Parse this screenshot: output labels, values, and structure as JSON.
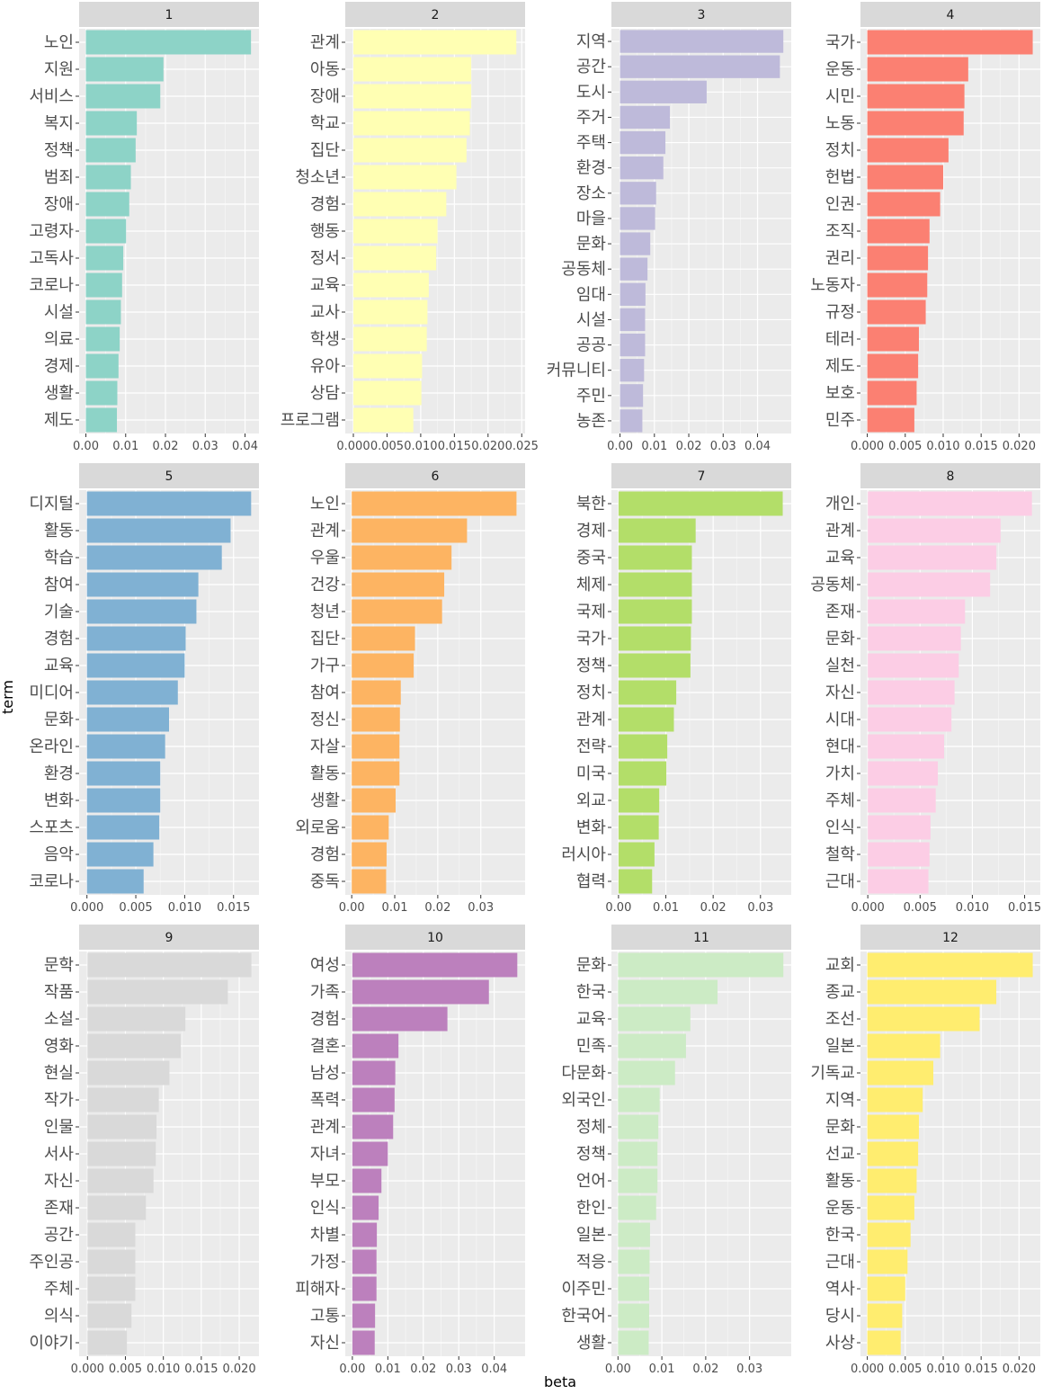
{
  "chart_data": {
    "type": "bar",
    "orientation": "horizontal",
    "layout": "facet_wrap",
    "xlabel": "beta",
    "ylabel": "term",
    "grid": true,
    "facets": [
      {
        "label": "1",
        "color": "#8DD3C7",
        "categories": [
          "노인",
          "지원",
          "서비스",
          "복지",
          "정책",
          "범죄",
          "장애",
          "고령자",
          "고독사",
          "코로나",
          "시설",
          "의료",
          "경제",
          "생활",
          "제도"
        ],
        "values": [
          0.0415,
          0.0195,
          0.0187,
          0.0128,
          0.0125,
          0.0113,
          0.0109,
          0.0101,
          0.0094,
          0.0091,
          0.0088,
          0.0085,
          0.0082,
          0.0079,
          0.0078
        ],
        "xlim": [
          -0.0017,
          0.0435
        ],
        "ticks": [
          0,
          0.01,
          0.02,
          0.03,
          0.04
        ],
        "tick_labels": [
          "0.00",
          "0.01",
          "0.02",
          "0.03",
          "0.04"
        ]
      },
      {
        "label": "2",
        "color": "#FFFFB3",
        "categories": [
          "관계",
          "아동",
          "장애",
          "학교",
          "집단",
          "청소년",
          "경험",
          "행동",
          "정서",
          "교육",
          "교사",
          "학생",
          "유아",
          "상담",
          "프로그램"
        ],
        "values": [
          0.0242,
          0.0175,
          0.0175,
          0.0173,
          0.0168,
          0.0153,
          0.0138,
          0.0125,
          0.0123,
          0.0112,
          0.011,
          0.0109,
          0.0102,
          0.0101,
          0.0089
        ],
        "xlim": [
          -0.0012,
          0.0255
        ],
        "ticks": [
          0,
          0.005,
          0.01,
          0.015,
          0.02,
          0.025
        ],
        "tick_labels": [
          "0.000",
          "0.005",
          "0.010",
          "0.015",
          "0.020",
          "0.025"
        ]
      },
      {
        "label": "3",
        "color": "#BEBADA",
        "categories": [
          "지역",
          "공간",
          "도시",
          "주거",
          "주택",
          "환경",
          "장소",
          "마을",
          "문화",
          "공동체",
          "임대",
          "시설",
          "공공",
          "커뮤니티",
          "주민",
          "농존"
        ],
        "values": [
          0.0475,
          0.0465,
          0.0252,
          0.0145,
          0.0132,
          0.0126,
          0.0105,
          0.0102,
          0.0088,
          0.008,
          0.0074,
          0.0073,
          0.0073,
          0.007,
          0.0067,
          0.0065
        ],
        "xlim": [
          -0.0025,
          0.0498
        ],
        "ticks": [
          0,
          0.01,
          0.02,
          0.03,
          0.04
        ],
        "tick_labels": [
          "0.00",
          "0.01",
          "0.02",
          "0.03",
          "0.04"
        ]
      },
      {
        "label": "4",
        "color": "#FB8072",
        "categories": [
          "국가",
          "운동",
          "시민",
          "노동",
          "정치",
          "헌법",
          "인권",
          "조직",
          "권리",
          "노동자",
          "규정",
          "테러",
          "제도",
          "보호",
          "민주"
        ],
        "values": [
          0.0218,
          0.0133,
          0.0128,
          0.0127,
          0.0107,
          0.01,
          0.0096,
          0.0082,
          0.008,
          0.0079,
          0.0077,
          0.0068,
          0.0067,
          0.0065,
          0.0062
        ],
        "xlim": [
          -0.0009,
          0.0228
        ],
        "ticks": [
          0,
          0.005,
          0.01,
          0.015,
          0.02
        ],
        "tick_labels": [
          "0.000",
          "0.005",
          "0.010",
          "0.015",
          "0.020"
        ]
      },
      {
        "label": "5",
        "color": "#80B1D3",
        "categories": [
          "디지털",
          "활동",
          "학습",
          "참여",
          "기술",
          "경험",
          "교육",
          "미디어",
          "문화",
          "온라인",
          "환경",
          "변화",
          "스포츠",
          "음악",
          "코로나"
        ],
        "values": [
          0.0168,
          0.0147,
          0.0138,
          0.0114,
          0.0112,
          0.0101,
          0.01,
          0.0093,
          0.0084,
          0.008,
          0.0075,
          0.0075,
          0.0074,
          0.0068,
          0.0058
        ],
        "xlim": [
          -0.0008,
          0.0176
        ],
        "ticks": [
          0,
          0.005,
          0.01,
          0.015
        ],
        "tick_labels": [
          "0.000",
          "0.005",
          "0.010",
          "0.015"
        ]
      },
      {
        "label": "6",
        "color": "#FDB462",
        "categories": [
          "노인",
          "관계",
          "우울",
          "건강",
          "청년",
          "집단",
          "가구",
          "참여",
          "정신",
          "자살",
          "활동",
          "생활",
          "외로움",
          "경험",
          "중독"
        ],
        "values": [
          0.0383,
          0.0268,
          0.0232,
          0.0215,
          0.021,
          0.0147,
          0.0144,
          0.0114,
          0.0112,
          0.0111,
          0.0111,
          0.0102,
          0.0086,
          0.0081,
          0.008
        ],
        "xlim": [
          -0.0015,
          0.0403
        ],
        "ticks": [
          0,
          0.01,
          0.02,
          0.03
        ],
        "tick_labels": [
          "0.00",
          "0.01",
          "0.02",
          "0.03"
        ]
      },
      {
        "label": "7",
        "color": "#B3DE69",
        "categories": [
          "북한",
          "경제",
          "중국",
          "체제",
          "국제",
          "국가",
          "정책",
          "정치",
          "관계",
          "전략",
          "미국",
          "외교",
          "변화",
          "러시아",
          "협력"
        ],
        "values": [
          0.0347,
          0.0163,
          0.0155,
          0.0155,
          0.0155,
          0.0153,
          0.0152,
          0.0122,
          0.0117,
          0.0103,
          0.0101,
          0.0086,
          0.0085,
          0.0076,
          0.0071
        ],
        "xlim": [
          -0.0015,
          0.0365
        ],
        "ticks": [
          0,
          0.01,
          0.02,
          0.03
        ],
        "tick_labels": [
          "0.00",
          "0.01",
          "0.02",
          "0.03"
        ]
      },
      {
        "label": "8",
        "color": "#FCCDE5",
        "categories": [
          "개인",
          "관계",
          "교육",
          "공동체",
          "존재",
          "문화",
          "실천",
          "자신",
          "시대",
          "현대",
          "가치",
          "주체",
          "인식",
          "철학",
          "근대"
        ],
        "values": [
          0.0157,
          0.0127,
          0.0123,
          0.0117,
          0.0093,
          0.0089,
          0.0087,
          0.0083,
          0.008,
          0.0073,
          0.0067,
          0.0065,
          0.006,
          0.0059,
          0.0058
        ],
        "xlim": [
          -0.0007,
          0.0165
        ],
        "ticks": [
          0,
          0.005,
          0.01,
          0.015
        ],
        "tick_labels": [
          "0.000",
          "0.005",
          "0.010",
          "0.015"
        ]
      },
      {
        "label": "9",
        "color": "#D9D9D9",
        "categories": [
          "문학",
          "작품",
          "소설",
          "영화",
          "현실",
          "작가",
          "인물",
          "서사",
          "자신",
          "존재",
          "공간",
          "주인공",
          "주체",
          "의식",
          "이야기"
        ],
        "values": [
          0.0216,
          0.0185,
          0.0129,
          0.0123,
          0.0108,
          0.0094,
          0.0091,
          0.009,
          0.0087,
          0.0077,
          0.0063,
          0.0063,
          0.0063,
          0.0058,
          0.0052
        ],
        "xlim": [
          -0.0011,
          0.0226
        ],
        "ticks": [
          0,
          0.005,
          0.01,
          0.015,
          0.02
        ],
        "tick_labels": [
          "0.000",
          "0.005",
          "0.010",
          "0.015",
          "0.020"
        ]
      },
      {
        "label": "10",
        "color": "#BC80BD",
        "categories": [
          "여성",
          "가족",
          "경험",
          "결혼",
          "남성",
          "폭력",
          "관계",
          "자녀",
          "부모",
          "인식",
          "차별",
          "가정",
          "피해자",
          "고통",
          "자신"
        ],
        "values": [
          0.0465,
          0.0385,
          0.0268,
          0.013,
          0.0121,
          0.0119,
          0.0115,
          0.01,
          0.0082,
          0.0074,
          0.0069,
          0.0068,
          0.0068,
          0.0064,
          0.0063
        ],
        "xlim": [
          -0.002,
          0.0487
        ],
        "ticks": [
          0,
          0.01,
          0.02,
          0.03,
          0.04
        ],
        "tick_labels": [
          "0.00",
          "0.01",
          "0.02",
          "0.03",
          "0.04"
        ]
      },
      {
        "label": "11",
        "color": "#CCEBC5",
        "categories": [
          "문화",
          "한국",
          "교육",
          "민족",
          "다문화",
          "외국인",
          "정체",
          "정책",
          "언어",
          "한인",
          "일본",
          "적응",
          "이주민",
          "한국어",
          "생활"
        ],
        "values": [
          0.0377,
          0.0227,
          0.0165,
          0.0155,
          0.013,
          0.0095,
          0.0092,
          0.009,
          0.009,
          0.0087,
          0.0073,
          0.0072,
          0.0071,
          0.0071,
          0.007
        ],
        "xlim": [
          -0.0015,
          0.0395
        ],
        "ticks": [
          0,
          0.01,
          0.02,
          0.03
        ],
        "tick_labels": [
          "0.00",
          "0.01",
          "0.02",
          "0.03"
        ]
      },
      {
        "label": "12",
        "color": "#FFED6F",
        "categories": [
          "교회",
          "종교",
          "조선",
          "일본",
          "기독교",
          "지역",
          "문화",
          "선교",
          "활동",
          "운동",
          "한국",
          "근대",
          "역사",
          "당시",
          "사상"
        ],
        "values": [
          0.0218,
          0.017,
          0.0148,
          0.0096,
          0.0087,
          0.0073,
          0.0068,
          0.0067,
          0.0065,
          0.0062,
          0.0057,
          0.0053,
          0.005,
          0.0046,
          0.0044
        ],
        "xlim": [
          -0.0009,
          0.0228
        ],
        "ticks": [
          0,
          0.005,
          0.01,
          0.015,
          0.02
        ],
        "tick_labels": [
          "0.000",
          "0.005",
          "0.010",
          "0.015",
          "0.020"
        ]
      }
    ]
  }
}
